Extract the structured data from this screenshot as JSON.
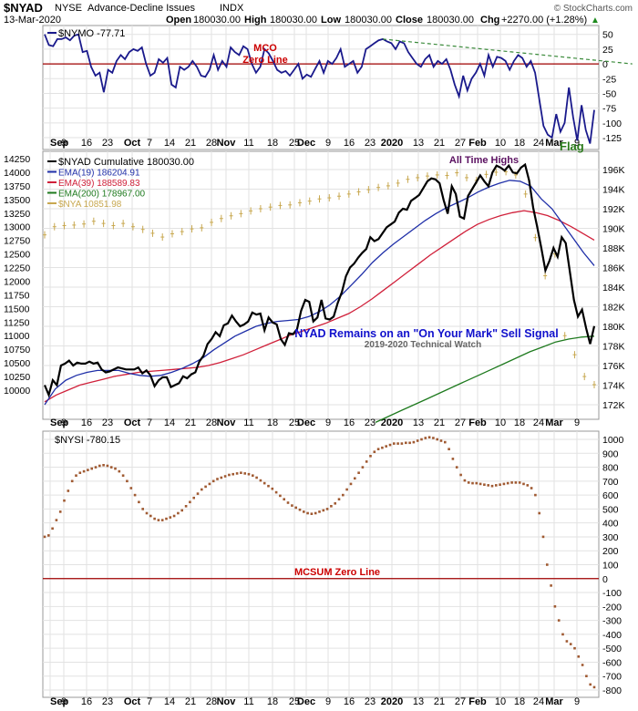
{
  "header": {
    "symbol": "$NYAD",
    "exchange": "NYSE",
    "description": "Advance-Decline Issues",
    "index_tag": "INDX",
    "date": "13-Mar-2020",
    "open_label": "Open",
    "open": "180030.00",
    "high_label": "High",
    "high": "180030.00",
    "low_label": "Low",
    "low": "180030.00",
    "close_label": "Close",
    "close": "180030.00",
    "chg_label": "Chg",
    "chg": "+2270.00 (+1.28%)",
    "chg_arrow": "▲",
    "watermark": "© StockCharts.com"
  },
  "colors": {
    "navy": "#1a1a8c",
    "black": "#000000",
    "ema19": "#1f2fa8",
    "ema39": "#d0203a",
    "ema200": "#1e7a1e",
    "nya": "#c8a850",
    "zero_line": "#a00000",
    "annotation_red": "#cc0000",
    "annotation_blue": "#1010cc",
    "annotation_purple": "#5a1060",
    "flag_green": "#2a7a1a",
    "nysi_dot": "#a05a32"
  },
  "x_axis": {
    "labels": [
      "Sep",
      "9",
      "16",
      "23",
      "Oct",
      "7",
      "14",
      "21",
      "28",
      "Nov",
      "11",
      "18",
      "25",
      "Dec",
      "9",
      "16",
      "23",
      "2020",
      "13",
      "21",
      "27",
      "Feb",
      "10",
      "18",
      "24",
      "Mar",
      "9"
    ],
    "bold": [
      "Sep",
      "Oct",
      "Nov",
      "Dec",
      "2020",
      "Feb",
      "Mar"
    ]
  },
  "chart_data": [
    {
      "type": "line",
      "panel": "top",
      "title": "$NYMO -77.71",
      "y_ticks": [
        50,
        25,
        0,
        -25,
        -50,
        -75,
        -100,
        -125
      ],
      "ylim": [
        -145,
        65
      ],
      "series": [
        {
          "name": "$NYMO",
          "values": [
            50,
            32,
            30,
            42,
            42,
            45,
            40,
            48,
            50,
            20,
            22,
            -5,
            -20,
            -15,
            -48,
            -10,
            -15,
            5,
            15,
            8,
            20,
            25,
            22,
            28,
            0,
            -20,
            -15,
            8,
            2,
            10,
            -35,
            -40,
            -5,
            -10,
            -5,
            5,
            -5,
            -20,
            -22,
            -10,
            15,
            -10,
            5,
            -5,
            28,
            20,
            15,
            30,
            25,
            0,
            -15,
            -5,
            25,
            18,
            5,
            -10,
            -15,
            -12,
            -20,
            -10,
            0,
            -25,
            -18,
            -22,
            -8,
            5,
            -15,
            5,
            0,
            10,
            25,
            -5,
            0,
            5,
            -15,
            -5,
            25,
            30,
            35,
            40,
            42,
            38,
            35,
            25,
            38,
            35,
            20,
            10,
            0,
            -5,
            8,
            15,
            -5,
            5,
            0,
            8,
            -10,
            -35,
            -55,
            -20,
            -45,
            -25,
            -15,
            0,
            -20,
            15,
            -5,
            12,
            10,
            5,
            -10,
            5,
            15,
            10,
            -5,
            5,
            -15,
            -60,
            -105,
            -120,
            -125,
            -85,
            -115,
            -100,
            -40,
            -90,
            -130,
            -70,
            -112,
            -135,
            -78
          ]
        }
      ],
      "trendline": {
        "from_index": 80,
        "to_index": 139,
        "from_value": 42,
        "to_value": 0
      },
      "annotations": [
        "MCO",
        "Zero Line",
        "Flag"
      ]
    },
    {
      "type": "line",
      "panel": "middle",
      "title": "$NYAD Cumulative 180030.00",
      "y_ticks": [
        14250,
        14000,
        13750,
        13500,
        13250,
        13000,
        12750,
        12500,
        12250,
        12000,
        11750,
        11500,
        11250,
        11000,
        10750,
        10500,
        10250,
        10000
      ],
      "y2_ticks": [
        196,
        194,
        192,
        190,
        188,
        186,
        184,
        182,
        180,
        178,
        176,
        174,
        172
      ],
      "y2_unit": "K",
      "legend": [
        {
          "key": "nyad",
          "text": "$NYAD Cumulative 180030.00"
        },
        {
          "key": "ema19",
          "text": "EMA(19) 186204.91"
        },
        {
          "key": "ema39",
          "text": "EMA(39) 188589.83"
        },
        {
          "key": "ema200",
          "text": "EMA(200) 178967.00"
        },
        {
          "key": "nya",
          "text": "$NYA 10851.98"
        }
      ],
      "series": [
        {
          "name": "$NYAD",
          "axis": "right",
          "values": [
            174,
            173,
            174.5,
            174,
            176,
            176.2,
            176.5,
            176,
            176.3,
            176.2,
            176.2,
            176.4,
            176.2,
            176.3,
            175.6,
            175.3,
            175.4,
            175.6,
            175.8,
            175.7,
            175.6,
            175.6,
            175.6,
            175.8,
            175.2,
            175.5,
            175,
            173.9,
            174.5,
            174.8,
            174.8,
            173.8,
            174,
            174.2,
            174.9,
            174.7,
            175.1,
            175.3,
            176.4,
            177,
            178.2,
            178.7,
            179.4,
            179,
            180.1,
            180.3,
            181.1,
            180.5,
            180,
            180.2,
            180.5,
            181.4,
            181.2,
            181.3,
            179.6,
            180.9,
            180.4,
            180.2,
            178.7,
            178.1,
            179.3,
            179.2,
            179.7,
            181.6,
            182.7,
            182.5,
            180.5,
            180.9,
            182.7,
            180.8,
            180.7,
            181,
            182.4,
            183.5,
            185.1,
            186,
            186.4,
            187,
            187.5,
            187.9,
            189.1,
            188.7,
            188.9,
            189.5,
            190.1,
            190.4,
            190.7,
            191.6,
            192,
            191.9,
            192.8,
            193.1,
            193.4,
            194.1,
            194.8,
            195.1,
            195,
            194.6,
            192.9,
            191.5,
            194.3,
            193.5,
            191.2,
            191,
            193.3,
            194,
            194.7,
            195.4,
            194.8,
            194.3,
            195.7,
            196.4,
            196.2,
            195.9,
            196.4,
            195.7,
            195.6,
            196.2,
            196.5,
            194.9,
            192.1,
            190.1,
            188,
            185.7,
            186.7,
            188,
            187.1,
            189.1,
            188.5,
            185.6,
            182.7,
            181,
            181.7,
            179.8,
            178.2,
            180.03
          ]
        },
        {
          "name": "EMA(19)",
          "axis": "right",
          "values": [
            172,
            173.6,
            174.5,
            175,
            175.3,
            175.5,
            175.5,
            175.5,
            175.2,
            175,
            174.9,
            175,
            175.3,
            175.7,
            176.2,
            176.8,
            177.6,
            178.3,
            179,
            179.5,
            180,
            180.3,
            180.5,
            180.6,
            180.7,
            181,
            181.5,
            182.2,
            183.1,
            184.2,
            185.3,
            186.5,
            187.5,
            188.4,
            189.2,
            190,
            190.8,
            191.5,
            192.1,
            192.6,
            193.1,
            193.7,
            194.2,
            194.6,
            194.9,
            194.8,
            194.3,
            193,
            192,
            190.5,
            189,
            187.5,
            186.2
          ]
        },
        {
          "name": "EMA(39)",
          "axis": "right",
          "values": [
            172.3,
            173,
            173.5,
            174,
            174.3,
            174.6,
            174.9,
            175.1,
            175.3,
            175.4,
            175.5,
            175.6,
            175.7,
            175.8,
            176,
            176.3,
            176.7,
            177.1,
            177.6,
            178.1,
            178.6,
            179.1,
            179.5,
            179.9,
            180.3,
            180.8,
            181.3,
            182,
            182.8,
            183.7,
            184.6,
            185.5,
            186.4,
            187.3,
            188.1,
            188.9,
            189.7,
            190.4,
            190.9,
            191.3,
            191.6,
            191.8,
            191.6,
            191.3,
            190.8,
            190.2,
            189.5,
            188.8
          ]
        },
        {
          "name": "EMA(200)",
          "axis": "right",
          "values": [
            170.2,
            170.8,
            171.4,
            172,
            172.6,
            173.2,
            173.8,
            174.4,
            175,
            175.6,
            176.2,
            176.8,
            177.4,
            177.9,
            178.4,
            178.7,
            178.9,
            179
          ]
        },
        {
          "name": "$NYA",
          "axis": "left",
          "values": [
            12850,
            13000,
            13020,
            13030,
            13050,
            13100,
            13060,
            13020,
            13060,
            13000,
            12950,
            12880,
            12810,
            12870,
            12910,
            12960,
            12980,
            13080,
            13150,
            13200,
            13240,
            13290,
            13330,
            13360,
            13390,
            13400,
            13440,
            13470,
            13510,
            13530,
            13560,
            13600,
            13640,
            13680,
            13720,
            13750,
            13800,
            13870,
            13900,
            13930,
            13950,
            13940,
            13990,
            13900,
            13850,
            13960,
            14000,
            14010,
            13950,
            13600,
            12800,
            12100,
            12500,
            11000,
            10650,
            10250,
            10100
          ]
        }
      ],
      "annotations": [
        "All Time Highs",
        "NYAD Remains on an \"On Your Mark\" Sell Signal",
        "2019-2020 Technical Watch"
      ]
    },
    {
      "type": "scatter",
      "panel": "bottom",
      "title": "$NYSI -780.15",
      "y_ticks": [
        1000,
        900,
        800,
        700,
        600,
        500,
        400,
        300,
        200,
        100,
        0,
        -100,
        -200,
        -300,
        -400,
        -500,
        -600,
        -700,
        -800
      ],
      "ylim": [
        -850,
        1050
      ],
      "series": [
        {
          "name": "$NYSI",
          "values": [
            300,
            310,
            360,
            420,
            480,
            560,
            630,
            700,
            740,
            760,
            770,
            780,
            790,
            800,
            810,
            815,
            810,
            800,
            790,
            770,
            740,
            700,
            650,
            600,
            550,
            500,
            470,
            450,
            430,
            420,
            420,
            430,
            440,
            450,
            470,
            490,
            520,
            550,
            580,
            610,
            640,
            660,
            680,
            700,
            715,
            725,
            735,
            745,
            750,
            755,
            760,
            755,
            750,
            740,
            725,
            705,
            685,
            665,
            645,
            620,
            595,
            570,
            545,
            525,
            510,
            495,
            480,
            470,
            465,
            470,
            480,
            490,
            500,
            520,
            540,
            570,
            600,
            640,
            680,
            720,
            760,
            800,
            840,
            880,
            910,
            930,
            940,
            950,
            960,
            970,
            970,
            970,
            975,
            975,
            980,
            990,
            1000,
            1010,
            1015,
            1010,
            1000,
            990,
            980,
            930,
            860,
            800,
            745,
            705,
            690,
            685,
            685,
            680,
            675,
            670,
            665,
            670,
            675,
            680,
            685,
            690,
            690,
            690,
            680,
            670,
            650,
            600,
            470,
            300,
            100,
            -50,
            -200,
            -300,
            -400,
            -450,
            -470,
            -500,
            -560,
            -620,
            -700,
            -760,
            -780
          ]
        }
      ],
      "annotations": [
        "MCSUM Zero Line"
      ]
    }
  ]
}
